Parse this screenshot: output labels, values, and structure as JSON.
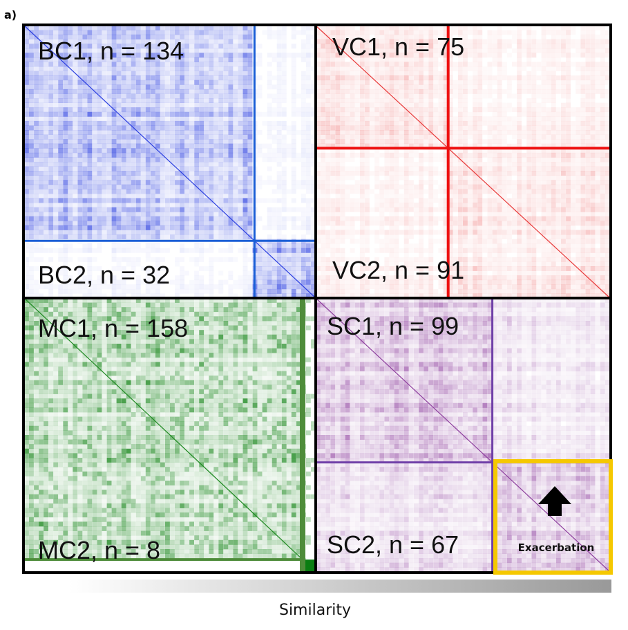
{
  "panel_label": "a)",
  "colorbar_label": "Similarity",
  "quadrants": {
    "blue": {
      "color": "#2b3fe0",
      "line": "#1b5fd6",
      "split": 0.79,
      "clusters": [
        {
          "label": "BC1, n = 134",
          "n": 134
        },
        {
          "label": "BC2, n = 32",
          "n": 32
        }
      ]
    },
    "red": {
      "color": "#e83a3a",
      "line": "#ee1111",
      "split": 0.45,
      "clusters": [
        {
          "label": "VC1, n = 75",
          "n": 75
        },
        {
          "label": "VC2, n = 91",
          "n": 91
        }
      ]
    },
    "green": {
      "color": "#1f8a22",
      "line": "#4e8c3a",
      "split": 0.95,
      "clusters": [
        {
          "label": "MC1, n = 158",
          "n": 158
        },
        {
          "label": "MC2, n = 8",
          "n": 8
        }
      ]
    },
    "purple": {
      "color": "#8e3f9e",
      "line": "#7040a8",
      "split": 0.6,
      "clusters": [
        {
          "label": "SC1, n = 99",
          "n": 99
        },
        {
          "label": "SC2, n = 67",
          "n": 67
        }
      ]
    }
  },
  "highlight": {
    "label": "Exacerbation",
    "color": "#f5c800",
    "arrow": "up-arrow-icon"
  }
}
